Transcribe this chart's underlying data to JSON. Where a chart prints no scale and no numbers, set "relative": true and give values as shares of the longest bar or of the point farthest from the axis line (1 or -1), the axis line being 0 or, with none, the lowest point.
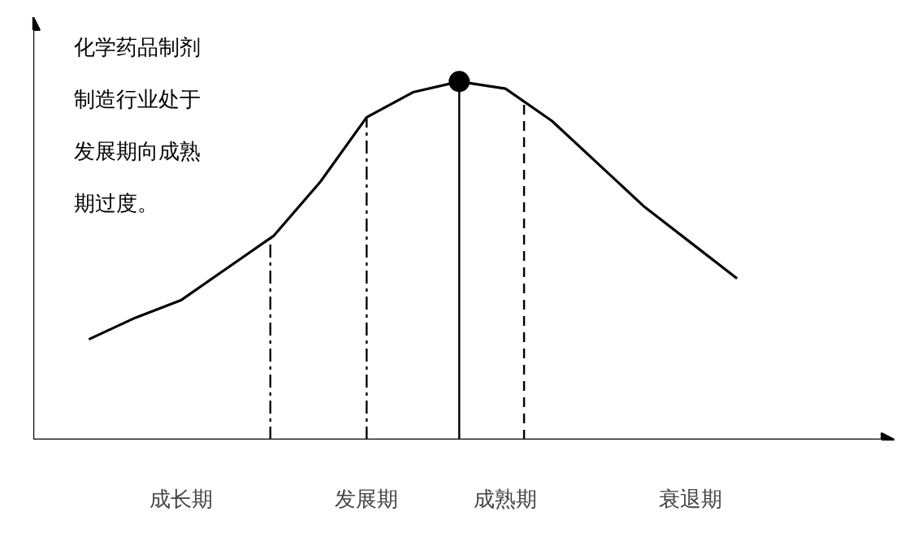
{
  "chart_data": {
    "type": "line",
    "relative": true,
    "categories": [
      null,
      null,
      "成长期",
      null,
      null,
      null,
      "发展期",
      null,
      null,
      "成熟期",
      null,
      null,
      null,
      "衰退期",
      null
    ],
    "series": [
      {
        "color": "#000000",
        "values": [
          0.28,
          0.34,
          0.39,
          0.48,
          0.57,
          0.72,
          0.9,
          0.97,
          1,
          0.98,
          0.89,
          0.77,
          0.65,
          0.55,
          0.45
        ]
      },
      {
        "type": "scatter",
        "marker": "circle",
        "color": "#000000",
        "values": [
          null,
          null,
          null,
          null,
          null,
          null,
          null,
          null,
          1,
          null,
          null,
          null,
          null,
          null,
          null
        ]
      }
    ],
    "annotations": [
      "化学药品制剂制造行业处于发展期向成熟期过度。"
    ],
    "line_style": "solid"
  }
}
